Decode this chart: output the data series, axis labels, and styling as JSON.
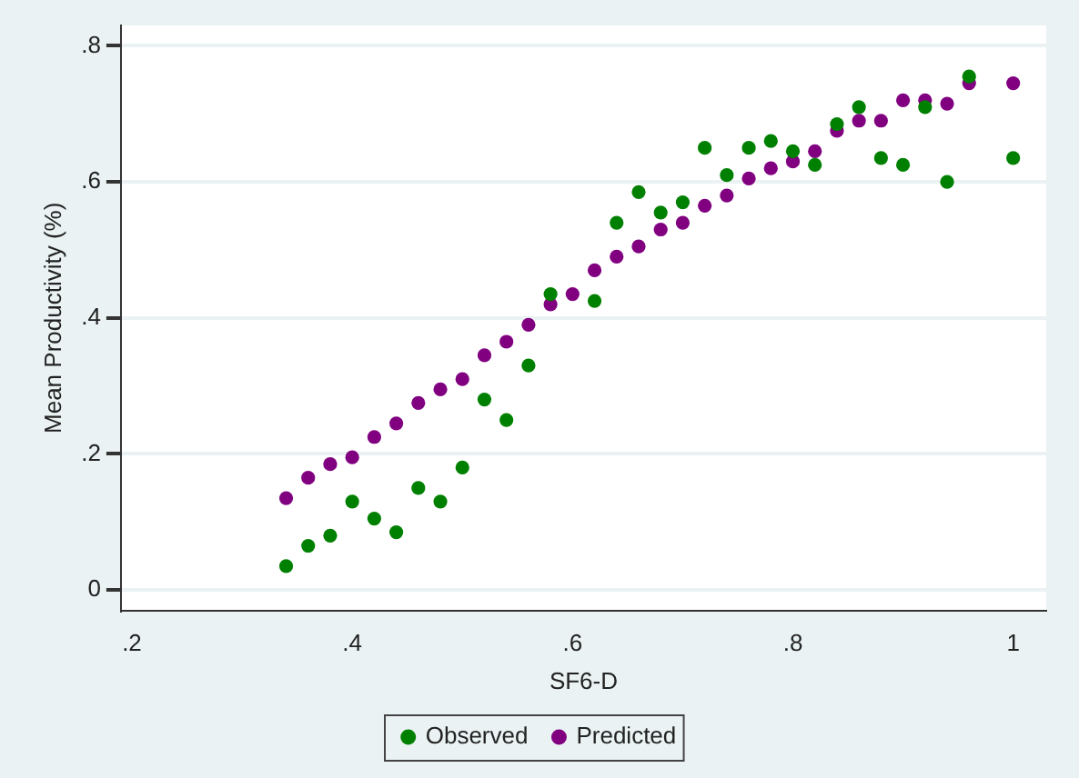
{
  "chart_data": {
    "type": "scatter",
    "xlabel": "SF6-D",
    "ylabel": "Mean Productivity (%)",
    "xlim": [
      0.19,
      1.03
    ],
    "ylim": [
      -0.03,
      0.83
    ],
    "xticks": [
      {
        "value": 0.2,
        "label": ".2"
      },
      {
        "value": 0.4,
        "label": ".4"
      },
      {
        "value": 0.6,
        "label": ".6"
      },
      {
        "value": 0.8,
        "label": ".8"
      },
      1
    ],
    "yticks": [
      0,
      {
        "value": 0.2,
        "label": ".2"
      },
      {
        "value": 0.4,
        "label": ".4"
      },
      {
        "value": 0.6,
        "label": ".6"
      },
      {
        "value": 0.8,
        "label": ".8"
      }
    ],
    "grid": "y",
    "legend": "bottom",
    "marker": "circle",
    "series": [
      {
        "name": "Observed",
        "color": "#008000",
        "x": [
          0.34,
          0.36,
          0.38,
          0.4,
          0.42,
          0.44,
          0.46,
          0.48,
          0.5,
          0.52,
          0.54,
          0.56,
          0.58,
          0.62,
          0.64,
          0.66,
          0.68,
          0.7,
          0.72,
          0.74,
          0.76,
          0.78,
          0.8,
          0.82,
          0.84,
          0.86,
          0.88,
          0.9,
          0.92,
          0.94,
          0.96,
          1.0
        ],
        "values": [
          0.035,
          0.065,
          0.08,
          0.13,
          0.105,
          0.085,
          0.15,
          0.13,
          0.18,
          0.28,
          0.25,
          0.33,
          0.435,
          0.425,
          0.54,
          0.585,
          0.555,
          0.57,
          0.65,
          0.61,
          0.65,
          0.66,
          0.645,
          0.625,
          0.685,
          0.71,
          0.635,
          0.625,
          0.71,
          0.6,
          0.755,
          0.635
        ]
      },
      {
        "name": "Predicted",
        "color": "#800080",
        "x": [
          0.34,
          0.36,
          0.38,
          0.4,
          0.42,
          0.44,
          0.46,
          0.48,
          0.5,
          0.52,
          0.54,
          0.56,
          0.58,
          0.6,
          0.62,
          0.64,
          0.66,
          0.68,
          0.7,
          0.72,
          0.74,
          0.76,
          0.78,
          0.8,
          0.82,
          0.84,
          0.86,
          0.88,
          0.9,
          0.92,
          0.94,
          0.96,
          1.0
        ],
        "values": [
          0.135,
          0.165,
          0.185,
          0.195,
          0.225,
          0.245,
          0.275,
          0.295,
          0.31,
          0.345,
          0.365,
          0.39,
          0.42,
          0.435,
          0.47,
          0.49,
          0.505,
          0.53,
          0.54,
          0.565,
          0.58,
          0.605,
          0.62,
          0.63,
          0.645,
          0.675,
          0.69,
          0.69,
          0.72,
          0.72,
          0.715,
          0.745,
          0.745
        ]
      }
    ]
  }
}
